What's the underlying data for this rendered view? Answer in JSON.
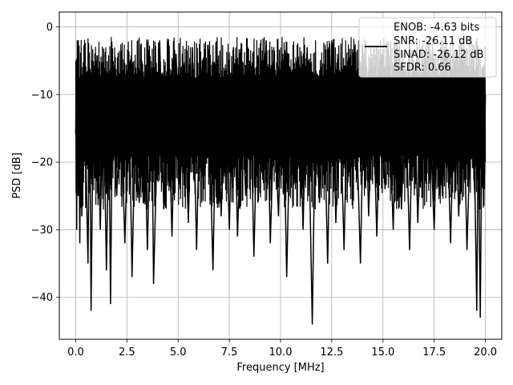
{
  "chart_data": {
    "type": "line",
    "title": "",
    "xlabel": "Frequency [MHz]",
    "ylabel": "PSD [dB]",
    "xlim": [
      -0.8,
      20.8
    ],
    "ylim": [
      -46.2,
      2.2
    ],
    "xticks": [
      0.0,
      2.5,
      5.0,
      7.5,
      10.0,
      12.5,
      15.0,
      17.5,
      20.0
    ],
    "xtick_labels": [
      "0.0",
      "2.5",
      "5.0",
      "7.5",
      "10.0",
      "12.5",
      "15.0",
      "17.5",
      "20.0"
    ],
    "yticks": [
      0,
      -10,
      -20,
      -30,
      -40
    ],
    "ytick_labels": [
      "0",
      "−10",
      "−20",
      "−30",
      "−40"
    ],
    "grid": true,
    "legend_position": "top-right",
    "legend_entries": [
      "ENOB: -4.63 bits",
      "SNR: -26.11 dB",
      "SINAD: -26.12 dB",
      "SFDR: 0.66"
    ],
    "line_color": "#000000",
    "series": [
      {
        "x": [
          0.0,
          0.02,
          0.05,
          0.08,
          0.12,
          0.15,
          0.2,
          0.25,
          0.3,
          0.4,
          0.5,
          0.6,
          0.68,
          0.75,
          0.85,
          0.95,
          1.05,
          1.2,
          1.35,
          1.5,
          1.62,
          1.7,
          1.8,
          2.0,
          2.2,
          2.4,
          2.6,
          2.75,
          2.9,
          3.1,
          3.3,
          3.5,
          3.7,
          3.8,
          4.0,
          4.1,
          4.3,
          4.5,
          4.7,
          4.9,
          5.1,
          5.3,
          5.5,
          5.7,
          5.9,
          6.1,
          6.3,
          6.5,
          6.7,
          6.9,
          7.1,
          7.3,
          7.5,
          7.7,
          7.9,
          8.1,
          8.3,
          8.5,
          8.7,
          8.9,
          9.1,
          9.3,
          9.5,
          9.7,
          9.9,
          10.1,
          10.3,
          10.5,
          10.7,
          10.9,
          11.1,
          11.3,
          11.55,
          11.7,
          11.9,
          12.1,
          12.3,
          12.5,
          12.7,
          12.9,
          13.1,
          13.3,
          13.5,
          13.7,
          13.9,
          14.1,
          14.3,
          14.5,
          14.7,
          14.9,
          15.1,
          15.3,
          15.5,
          15.7,
          15.9,
          16.1,
          16.3,
          16.5,
          16.7,
          16.9,
          17.1,
          17.3,
          17.5,
          17.7,
          17.9,
          18.1,
          18.3,
          18.5,
          18.7,
          18.9,
          19.1,
          19.3,
          19.5,
          19.58,
          19.65,
          19.75,
          19.85,
          19.95,
          20.0
        ],
        "y": [
          -16,
          -5,
          -30,
          -2,
          -25,
          -9,
          -32,
          -12,
          -28,
          -8,
          -20,
          -35,
          -8,
          -42,
          -14,
          -22,
          -10,
          -30,
          -9,
          -36,
          -13,
          -41,
          -10,
          -25,
          -12,
          -32,
          -8,
          -37,
          -15,
          -26,
          -7,
          -33,
          -6,
          -38,
          -14,
          -2,
          -27,
          -8,
          -31,
          -4,
          -24,
          -10,
          -29,
          -3,
          -33,
          -6,
          -22,
          -11,
          -36,
          -4,
          -28,
          -9,
          -30,
          -3,
          -31,
          -10,
          -25,
          -5,
          -34,
          -8,
          -20,
          -2,
          -32,
          -11,
          -28,
          -4,
          -37,
          -9,
          -23,
          -6,
          -30,
          -3,
          -44,
          -12,
          -26,
          -8,
          -35,
          -2,
          -29,
          -10,
          -33,
          -5,
          -21,
          -13,
          -35,
          -4,
          -28,
          -9,
          -31,
          -6,
          -24,
          -11,
          -30,
          -3,
          -27,
          -10,
          -33,
          -5,
          -29,
          -8,
          -22,
          -14,
          -30,
          -6,
          -25,
          -10,
          -32,
          -8,
          -28,
          -5,
          -33,
          -12,
          -26,
          -42,
          -15,
          -43,
          -6,
          -24,
          -10
        ]
      }
    ],
    "noise_band": {
      "upper": -1.5,
      "lower": -27,
      "points": 1200,
      "seed": 7
    }
  }
}
